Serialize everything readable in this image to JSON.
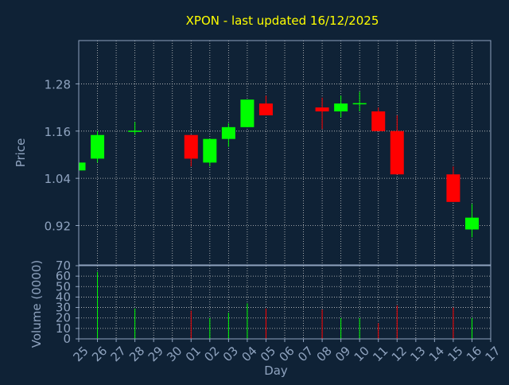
{
  "chart_data": {
    "type": "candlestick",
    "title": "XPON - last updated 16/12/2025",
    "xlabel": "Day",
    "price_ylabel": "Price",
    "volume_ylabel": "Volume (0000)",
    "price_ticks": [
      "1.28",
      "1.16",
      "1.04",
      "0.92"
    ],
    "price_ylim": [
      0.82,
      1.39
    ],
    "volume_ticks": [
      "0",
      "10",
      "20",
      "30",
      "40",
      "50",
      "60",
      "70"
    ],
    "volume_ylim": [
      0,
      70
    ],
    "x_labels": [
      "25",
      "26",
      "27",
      "28",
      "29",
      "30",
      "01",
      "02",
      "03",
      "04",
      "05",
      "06",
      "07",
      "08",
      "09",
      "10",
      "11",
      "12",
      "13",
      "14",
      "15",
      "16",
      "17"
    ],
    "candles": [
      {
        "day": "25",
        "open": 1.06,
        "close": 1.08,
        "high": 1.08,
        "low": 1.06,
        "volume": 0
      },
      {
        "day": "26",
        "open": 1.09,
        "close": 1.15,
        "high": 1.16,
        "low": 1.08,
        "volume": 64
      },
      {
        "day": "28",
        "open": 1.16,
        "close": 1.161,
        "high": 1.183,
        "low": 1.15,
        "volume": 29
      },
      {
        "day": "01",
        "open": 1.15,
        "close": 1.09,
        "high": 1.15,
        "low": 1.07,
        "volume": 27
      },
      {
        "day": "02",
        "open": 1.08,
        "close": 1.14,
        "high": 1.14,
        "low": 1.07,
        "volume": 20
      },
      {
        "day": "03",
        "open": 1.14,
        "close": 1.17,
        "high": 1.18,
        "low": 1.12,
        "volume": 25
      },
      {
        "day": "04",
        "open": 1.17,
        "close": 1.24,
        "high": 1.24,
        "low": 1.17,
        "volume": 34
      },
      {
        "day": "05",
        "open": 1.23,
        "close": 1.2,
        "high": 1.25,
        "low": 1.2,
        "volume": 29
      },
      {
        "day": "08",
        "open": 1.22,
        "close": 1.21,
        "high": 1.245,
        "low": 1.165,
        "volume": 28
      },
      {
        "day": "09",
        "open": 1.21,
        "close": 1.23,
        "high": 1.25,
        "low": 1.195,
        "volume": 20
      },
      {
        "day": "10",
        "open": 1.229,
        "close": 1.231,
        "high": 1.26,
        "low": 1.21,
        "volume": 20
      },
      {
        "day": "11",
        "open": 1.21,
        "close": 1.16,
        "high": 1.22,
        "low": 1.16,
        "volume": 15
      },
      {
        "day": "12",
        "open": 1.16,
        "close": 1.05,
        "high": 1.2,
        "low": 1.05,
        "volume": 32
      },
      {
        "day": "15",
        "open": 1.05,
        "close": 0.98,
        "high": 1.07,
        "low": 0.98,
        "volume": 30
      },
      {
        "day": "16",
        "open": 0.91,
        "close": 0.94,
        "high": 0.975,
        "low": 0.89,
        "volume": 20
      }
    ],
    "colors": {
      "background": "#0f2236",
      "plot_background": "#0f2236",
      "frame": "#8fa3bf",
      "grid": "#c8c8c8",
      "up": "#00ff00",
      "down": "#ff0000",
      "title": "#ffff00",
      "labels": "#8fa3bf",
      "tick_text": "#8fa3bf"
    },
    "grid": true
  }
}
